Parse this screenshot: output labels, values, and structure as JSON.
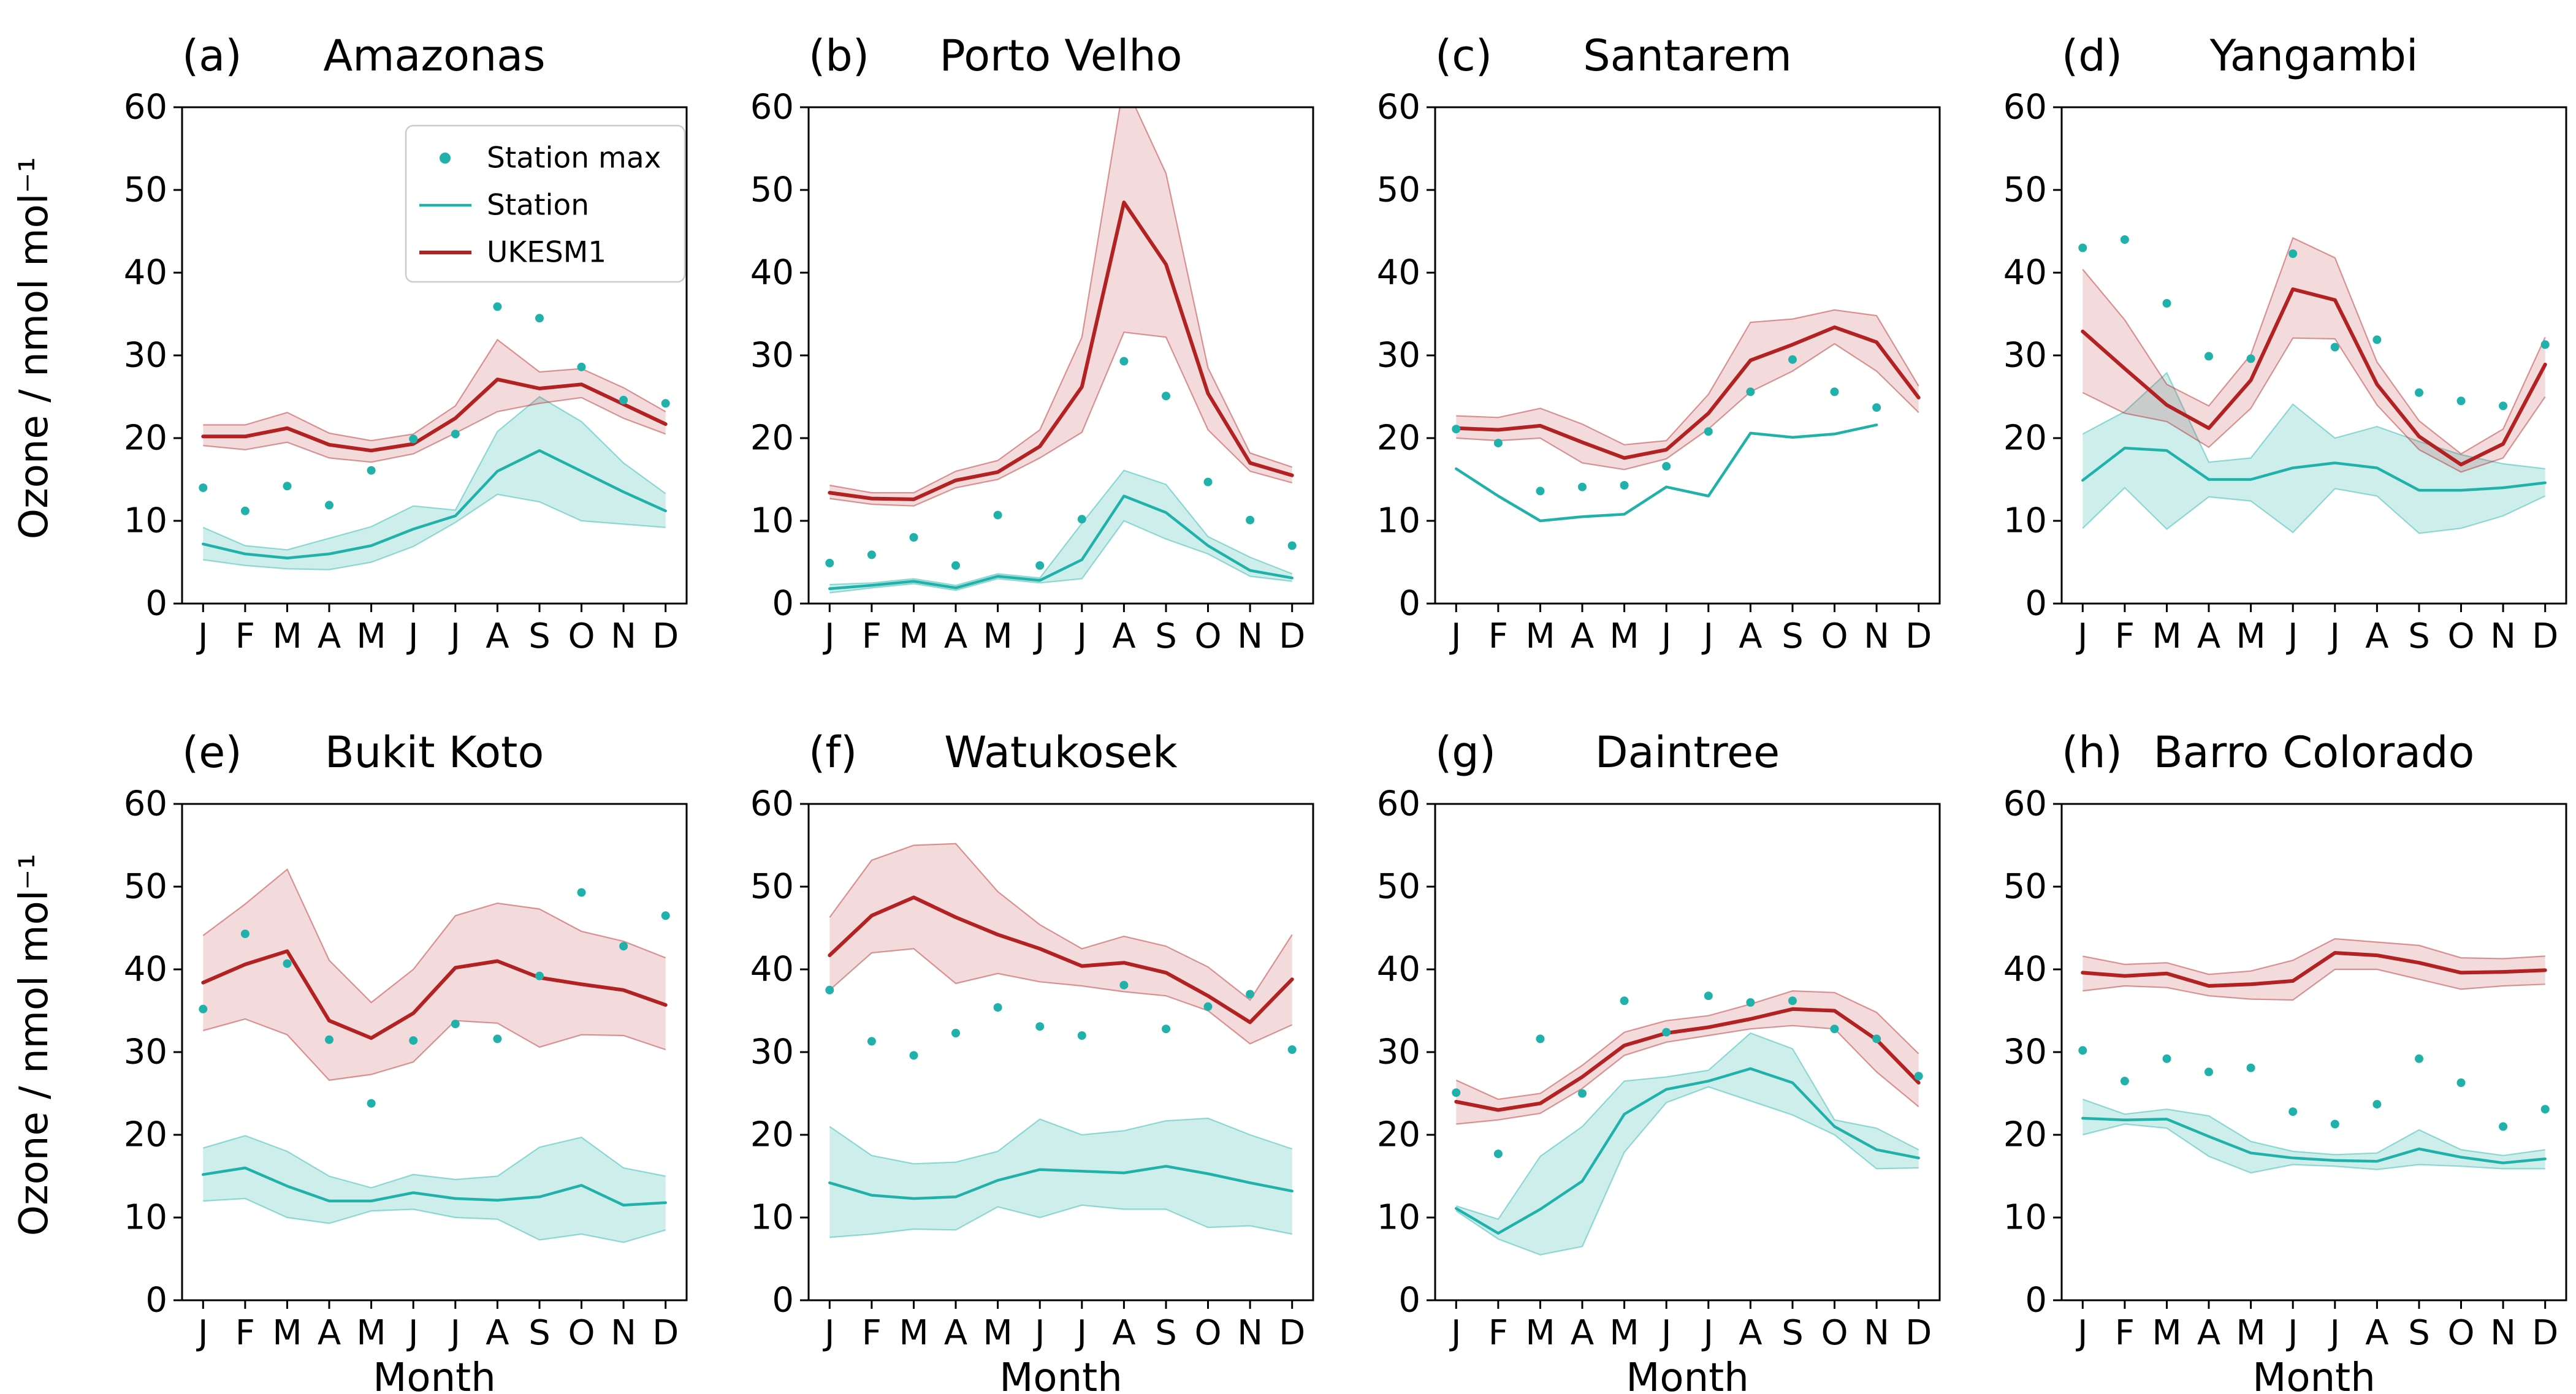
{
  "figure": {
    "background": "#ffffff"
  },
  "colors": {
    "station": "#20b2aa",
    "ukesm1": "#b22222",
    "station_band_opacity": 0.22,
    "ukesm1_band_opacity": 0.16,
    "band_edge_opacity": 0.45,
    "legend_border": "#cccccc",
    "axis": "#000000"
  },
  "axes": {
    "ylabel": "Ozone / nmol mol⁻¹",
    "xlabel": "Month",
    "ylim": [
      0,
      60
    ],
    "yticks": [
      0,
      10,
      20,
      30,
      40,
      50,
      60
    ],
    "months": [
      "J",
      "F",
      "M",
      "A",
      "M",
      "J",
      "J",
      "A",
      "S",
      "O",
      "N",
      "D"
    ],
    "grid": false
  },
  "legend": {
    "position": "upper-right-panel-a",
    "items": [
      {
        "label": "Station max",
        "marker": "dot",
        "color": "#20b2aa"
      },
      {
        "label": "Station",
        "marker": "line",
        "color": "#20b2aa"
      },
      {
        "label": "UKESM1",
        "marker": "line",
        "color": "#b22222"
      }
    ]
  },
  "chart_data": [
    {
      "type": "line",
      "panel_label": "(a)",
      "title": "Amazonas",
      "show_legend": true,
      "show_xlabel": false,
      "station_max": [
        14.0,
        11.2,
        14.2,
        11.9,
        16.1,
        19.9,
        20.5,
        35.9,
        34.5,
        28.6,
        24.6,
        24.2
      ],
      "station": {
        "mean": [
          7.2,
          6.0,
          5.5,
          6.0,
          7.0,
          9.0,
          10.6,
          16.0,
          18.5,
          16.0,
          13.5,
          11.2
        ],
        "lo": [
          5.3,
          4.6,
          4.2,
          4.1,
          5.0,
          6.9,
          9.8,
          13.2,
          12.3,
          10.0,
          9.6,
          9.2
        ],
        "hi": [
          9.2,
          7.0,
          6.5,
          7.9,
          9.3,
          11.8,
          11.3,
          20.8,
          25.0,
          22.0,
          17.0,
          13.3
        ]
      },
      "ukesm1": {
        "mean": [
          20.2,
          20.2,
          21.2,
          19.2,
          18.5,
          19.3,
          22.4,
          27.1,
          26.0,
          26.5,
          24.1,
          21.7
        ],
        "lo": [
          19.1,
          18.6,
          19.5,
          17.6,
          17.1,
          18.1,
          20.6,
          23.2,
          24.2,
          24.9,
          22.4,
          20.5
        ],
        "hi": [
          21.6,
          21.6,
          23.1,
          20.6,
          19.7,
          20.5,
          23.9,
          31.9,
          28.0,
          28.4,
          26.1,
          23.2
        ]
      }
    },
    {
      "type": "line",
      "panel_label": "(b)",
      "title": "Porto Velho",
      "show_legend": false,
      "show_xlabel": false,
      "station_max": [
        4.9,
        5.9,
        8.0,
        4.6,
        10.7,
        4.6,
        10.2,
        29.3,
        25.1,
        14.7,
        10.1,
        7.0
      ],
      "station": {
        "mean": [
          1.8,
          2.2,
          2.7,
          1.9,
          3.3,
          2.8,
          5.3,
          13.0,
          11.0,
          7.0,
          4.0,
          3.1
        ],
        "lo": [
          1.3,
          1.9,
          2.4,
          1.6,
          3.0,
          2.5,
          3.0,
          10.0,
          7.8,
          6.0,
          3.3,
          2.7
        ],
        "hi": [
          2.3,
          2.5,
          3.0,
          2.2,
          3.6,
          3.1,
          9.7,
          16.1,
          14.4,
          8.1,
          5.6,
          3.6
        ]
      },
      "ukesm1": {
        "mean": [
          13.4,
          12.7,
          12.6,
          14.9,
          15.9,
          19.0,
          26.2,
          48.5,
          41.0,
          25.4,
          17.0,
          15.5
        ],
        "lo": [
          12.7,
          12.0,
          11.8,
          14.0,
          15.0,
          17.6,
          20.7,
          32.8,
          32.2,
          21.0,
          16.0,
          14.6
        ],
        "hi": [
          14.3,
          13.4,
          13.4,
          16.0,
          17.3,
          21.0,
          32.2,
          63.0,
          52.0,
          28.5,
          18.2,
          16.5
        ]
      }
    },
    {
      "type": "line",
      "panel_label": "(c)",
      "title": "Santarem",
      "show_legend": false,
      "show_xlabel": false,
      "station_max": [
        21.1,
        19.4,
        13.6,
        14.1,
        14.3,
        16.6,
        20.8,
        25.6,
        29.5,
        25.6,
        23.7,
        null
      ],
      "station": {
        "mean": [
          16.3,
          13.0,
          10.0,
          10.5,
          10.8,
          14.1,
          13.0,
          20.6,
          20.1,
          20.5,
          21.6,
          null
        ],
        "lo": null,
        "hi": null
      },
      "ukesm1": {
        "mean": [
          21.2,
          21.0,
          21.5,
          19.5,
          17.6,
          18.6,
          23.0,
          29.4,
          31.3,
          33.4,
          31.6,
          24.9
        ],
        "lo": [
          20.0,
          19.7,
          20.0,
          17.0,
          16.2,
          17.5,
          21.1,
          25.6,
          28.1,
          31.4,
          28.1,
          23.1
        ],
        "hi": [
          22.7,
          22.5,
          23.6,
          21.7,
          19.2,
          19.7,
          25.3,
          34.0,
          34.4,
          35.5,
          34.8,
          26.3
        ]
      }
    },
    {
      "type": "line",
      "panel_label": "(d)",
      "title": "Yangambi",
      "show_legend": false,
      "show_xlabel": false,
      "station_max": [
        43.0,
        44.0,
        36.3,
        29.9,
        29.6,
        42.3,
        31.0,
        31.9,
        25.5,
        24.5,
        23.9,
        31.3
      ],
      "station": {
        "mean": [
          14.9,
          18.8,
          18.5,
          15.0,
          15.0,
          16.4,
          17.0,
          16.4,
          13.7,
          13.7,
          14.0,
          14.6
        ],
        "lo": [
          9.1,
          14.0,
          9.0,
          12.9,
          12.4,
          8.6,
          13.9,
          13.0,
          8.5,
          9.1,
          10.6,
          13.0
        ],
        "hi": [
          20.5,
          23.2,
          27.9,
          17.1,
          17.6,
          24.1,
          20.0,
          21.4,
          19.6,
          18.0,
          16.9,
          16.3
        ]
      },
      "ukesm1": {
        "mean": [
          32.9,
          28.4,
          24.0,
          21.2,
          27.0,
          38.0,
          36.7,
          26.5,
          20.2,
          16.8,
          19.3,
          28.9
        ],
        "lo": [
          25.5,
          23.0,
          22.0,
          18.9,
          23.6,
          32.1,
          32.0,
          24.0,
          18.6,
          15.9,
          17.6,
          25.0
        ],
        "hi": [
          40.4,
          34.3,
          26.5,
          23.9,
          30.1,
          44.2,
          41.8,
          29.2,
          22.1,
          18.1,
          21.1,
          32.2
        ]
      }
    },
    {
      "type": "line",
      "panel_label": "(e)",
      "title": "Bukit Koto",
      "show_legend": false,
      "show_xlabel": true,
      "station_max": [
        35.2,
        44.3,
        40.7,
        31.5,
        23.8,
        31.4,
        33.4,
        31.6,
        39.2,
        49.3,
        42.8,
        46.5
      ],
      "station": {
        "mean": [
          15.2,
          16.0,
          13.8,
          12.0,
          12.0,
          13.0,
          12.3,
          12.1,
          12.5,
          13.9,
          11.5,
          11.8
        ],
        "lo": [
          12.0,
          12.3,
          10.0,
          9.3,
          10.8,
          11.0,
          10.0,
          9.8,
          7.3,
          8.0,
          7.0,
          8.5
        ],
        "hi": [
          18.4,
          19.9,
          18.0,
          15.0,
          13.6,
          15.2,
          14.6,
          15.0,
          18.5,
          19.7,
          16.0,
          15.0
        ]
      },
      "ukesm1": {
        "mean": [
          38.4,
          40.6,
          42.2,
          33.8,
          31.7,
          34.7,
          40.2,
          41.0,
          39.0,
          38.2,
          37.5,
          35.7
        ],
        "lo": [
          32.6,
          34.0,
          32.1,
          26.6,
          27.3,
          28.8,
          33.8,
          33.5,
          30.6,
          32.1,
          32.0,
          30.3
        ],
        "hi": [
          44.1,
          47.9,
          52.1,
          41.1,
          36.0,
          40.0,
          46.5,
          48.0,
          47.3,
          44.6,
          43.4,
          41.4
        ]
      }
    },
    {
      "type": "line",
      "panel_label": "(f)",
      "title": "Watukosek",
      "show_legend": false,
      "show_xlabel": true,
      "station_max": [
        37.5,
        31.3,
        29.6,
        32.3,
        35.4,
        33.1,
        32.0,
        38.1,
        32.8,
        35.5,
        37.0,
        30.3
      ],
      "station": {
        "mean": [
          14.2,
          12.7,
          12.3,
          12.5,
          14.5,
          15.8,
          15.6,
          15.4,
          16.2,
          15.3,
          14.2,
          13.2
        ],
        "lo": [
          7.6,
          8.0,
          8.6,
          8.5,
          11.3,
          10.0,
          11.5,
          11.0,
          11.0,
          8.8,
          9.0,
          8.0
        ],
        "hi": [
          21.0,
          17.5,
          16.5,
          16.7,
          18.0,
          21.9,
          20.0,
          20.5,
          21.7,
          22.0,
          20.0,
          18.3
        ]
      },
      "ukesm1": {
        "mean": [
          41.7,
          46.5,
          48.7,
          46.3,
          44.2,
          42.5,
          40.4,
          40.8,
          39.6,
          36.8,
          33.6,
          38.8
        ],
        "lo": [
          37.5,
          42.0,
          42.5,
          38.3,
          39.5,
          38.5,
          38.0,
          37.3,
          36.8,
          35.0,
          31.0,
          33.3
        ],
        "hi": [
          46.3,
          53.2,
          55.0,
          55.2,
          49.4,
          45.4,
          42.5,
          44.0,
          42.8,
          40.3,
          36.3,
          44.2
        ]
      }
    },
    {
      "type": "line",
      "panel_label": "(g)",
      "title": "Daintree",
      "show_legend": false,
      "show_xlabel": true,
      "station_max": [
        25.1,
        17.7,
        31.6,
        25.0,
        36.2,
        32.4,
        36.8,
        36.0,
        36.2,
        32.8,
        31.6,
        27.1
      ],
      "station": {
        "mean": [
          11.1,
          8.1,
          11.0,
          14.4,
          22.5,
          25.5,
          26.5,
          28.0,
          26.3,
          21.0,
          18.2,
          17.2
        ],
        "lo": [
          10.8,
          7.4,
          5.5,
          6.5,
          17.9,
          23.9,
          25.8,
          24.1,
          22.4,
          20.0,
          15.9,
          16.0
        ],
        "hi": [
          11.4,
          9.8,
          17.4,
          21.0,
          26.5,
          27.0,
          27.8,
          32.3,
          30.4,
          21.8,
          20.8,
          18.2
        ]
      },
      "ukesm1": {
        "mean": [
          24.0,
          23.0,
          23.8,
          27.0,
          30.8,
          32.3,
          33.0,
          34.0,
          35.2,
          35.0,
          31.5,
          26.3
        ],
        "lo": [
          21.3,
          21.8,
          22.6,
          25.6,
          29.6,
          31.2,
          32.0,
          32.8,
          33.2,
          32.8,
          27.6,
          23.4
        ],
        "hi": [
          26.6,
          24.3,
          25.0,
          28.4,
          32.4,
          33.8,
          34.4,
          35.8,
          37.4,
          37.2,
          34.8,
          29.8
        ]
      }
    },
    {
      "type": "line",
      "panel_label": "(h)",
      "title": "Barro Colorado",
      "show_legend": false,
      "show_xlabel": true,
      "station_max": [
        30.2,
        26.5,
        29.2,
        27.6,
        28.1,
        22.8,
        21.3,
        23.7,
        29.2,
        26.3,
        21.0,
        23.1
      ],
      "station": {
        "mean": [
          22.0,
          21.8,
          21.9,
          19.8,
          17.8,
          17.2,
          16.9,
          16.8,
          18.3,
          17.3,
          16.6,
          17.1
        ],
        "lo": [
          20.0,
          21.3,
          20.8,
          17.4,
          15.4,
          16.4,
          16.2,
          15.8,
          16.4,
          16.2,
          15.9,
          15.9
        ],
        "hi": [
          24.3,
          22.5,
          23.1,
          22.3,
          19.2,
          18.0,
          17.6,
          17.8,
          20.6,
          18.2,
          17.5,
          18.2
        ]
      },
      "ukesm1": {
        "mean": [
          39.6,
          39.2,
          39.5,
          38.0,
          38.2,
          38.6,
          42.0,
          41.7,
          40.8,
          39.6,
          39.7,
          39.9
        ],
        "lo": [
          37.4,
          38.0,
          37.8,
          36.8,
          36.4,
          36.3,
          40.0,
          40.0,
          38.8,
          37.6,
          38.0,
          38.2
        ],
        "hi": [
          41.6,
          40.6,
          40.8,
          39.4,
          39.8,
          41.1,
          43.7,
          43.3,
          42.9,
          41.4,
          41.3,
          41.6
        ]
      }
    }
  ]
}
